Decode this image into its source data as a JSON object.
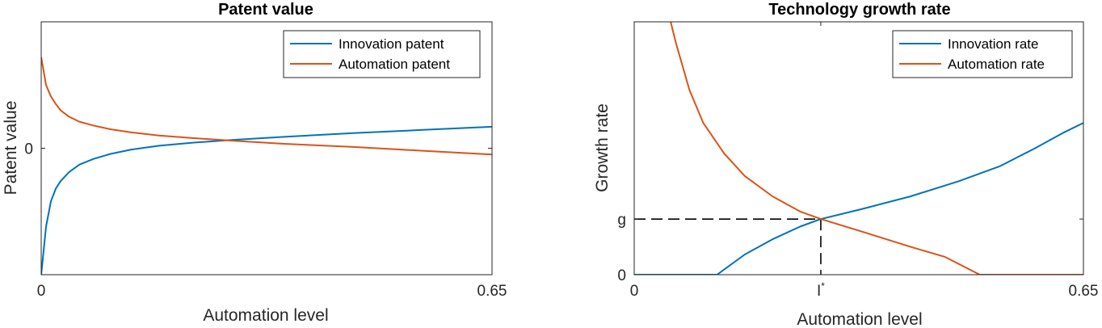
{
  "colors": {
    "series_blue": "#0072BD",
    "series_orange": "#D95319",
    "axis": "#262626",
    "legend_border": "#262626"
  },
  "chart_data": [
    {
      "type": "line",
      "title": "Patent value",
      "xlabel": "Automation level",
      "ylabel": "Patent value",
      "xlim": [
        0,
        0.65
      ],
      "ylim": [
        -1,
        1
      ],
      "xticks": [
        0,
        0.65
      ],
      "xticklabels": [
        "0",
        "0.65"
      ],
      "yticks": [
        0
      ],
      "yticklabels": [
        "0"
      ],
      "legend_location": "top-right",
      "series": [
        {
          "name": "Innovation patent",
          "color": "#0072BD",
          "x": [
            0,
            0.007,
            0.014,
            0.021,
            0.028,
            0.04,
            0.055,
            0.075,
            0.1,
            0.13,
            0.17,
            0.22,
            0.275,
            0.35,
            0.45,
            0.55,
            0.65
          ],
          "y": [
            -1.0,
            -0.62,
            -0.42,
            -0.32,
            -0.26,
            -0.19,
            -0.13,
            -0.085,
            -0.045,
            -0.01,
            0.02,
            0.045,
            0.065,
            0.09,
            0.12,
            0.145,
            0.17
          ]
        },
        {
          "name": "Automation patent",
          "color": "#D95319",
          "x": [
            0,
            0.007,
            0.014,
            0.021,
            0.028,
            0.04,
            0.055,
            0.075,
            0.1,
            0.13,
            0.17,
            0.22,
            0.275,
            0.35,
            0.45,
            0.55,
            0.65
          ],
          "y": [
            0.72,
            0.5,
            0.41,
            0.35,
            0.3,
            0.25,
            0.21,
            0.18,
            0.15,
            0.125,
            0.1,
            0.08,
            0.06,
            0.035,
            0.01,
            -0.02,
            -0.05
          ]
        }
      ]
    },
    {
      "type": "line",
      "title": "Technology growth rate",
      "xlabel": "Automation level",
      "ylabel": "Growth rate",
      "xlim": [
        0,
        0.65
      ],
      "ylim": [
        0,
        1
      ],
      "xticks": [
        0,
        0.27,
        0.65
      ],
      "xticklabels": [
        "0",
        "I*",
        "0.65"
      ],
      "yticks": [
        0,
        0.22
      ],
      "yticklabels": [
        "0",
        "g"
      ],
      "legend_location": "top-right",
      "reference_point": {
        "x": 0.27,
        "y": 0.22,
        "style": "dashed"
      },
      "series": [
        {
          "name": "Innovation rate",
          "color": "#0072BD",
          "x": [
            0,
            0.12,
            0.13,
            0.16,
            0.2,
            0.24,
            0.27,
            0.33,
            0.4,
            0.47,
            0.53,
            0.58,
            0.62,
            0.65
          ],
          "y": [
            0,
            0,
            0.02,
            0.08,
            0.14,
            0.19,
            0.22,
            0.26,
            0.31,
            0.37,
            0.43,
            0.5,
            0.56,
            0.6
          ]
        },
        {
          "name": "Automation rate",
          "color": "#D95319",
          "x": [
            0.05,
            0.06,
            0.08,
            0.1,
            0.13,
            0.16,
            0.2,
            0.24,
            0.27,
            0.33,
            0.4,
            0.45,
            0.5,
            0.55,
            0.6,
            0.65
          ],
          "y": [
            1.03,
            0.92,
            0.73,
            0.6,
            0.48,
            0.39,
            0.31,
            0.25,
            0.22,
            0.17,
            0.11,
            0.07,
            0.0,
            0.0,
            0.0,
            0.0
          ]
        }
      ]
    }
  ]
}
